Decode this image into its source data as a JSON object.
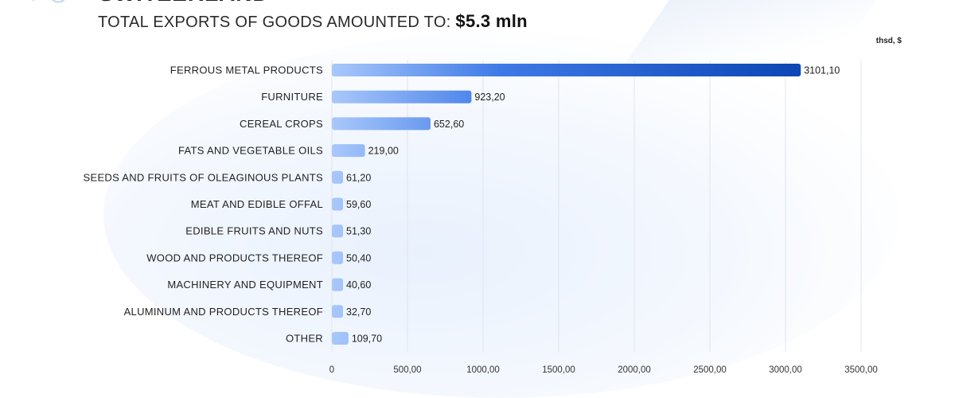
{
  "header": {
    "heading": "SWITZERLAND",
    "subtitle_prefix": "TOTAL EXPORTS OF GOODS AMOUNTED TO:",
    "subtitle_amount": "$5.3 mln",
    "unit": "thsd, $"
  },
  "colors": {
    "bar_light": "#a9c8fb",
    "bar_dark": "#0b44b3",
    "grid": "#dfe5ee",
    "text": "#222222"
  },
  "chart_data": {
    "type": "bar",
    "orientation": "horizontal",
    "categories": [
      "FERROUS METAL PRODUCTS",
      "FURNITURE",
      "CEREAL CROPS",
      "FATS AND VEGETABLE OILS",
      "SEEDS AND FRUITS OF OLEAGINOUS PLANTS",
      "MEAT AND EDIBLE OFFAL",
      "EDIBLE FRUITS AND NUTS",
      "WOOD AND PRODUCTS THEREOF",
      "MACHINERY AND EQUIPMENT",
      "ALUMINUM AND PRODUCTS THEREOF",
      "OTHER"
    ],
    "values": [
      3101.1,
      923.2,
      652.6,
      219.0,
      61.2,
      59.6,
      51.3,
      50.4,
      40.6,
      32.7,
      109.7
    ],
    "value_labels": [
      "3101,10",
      "923,20",
      "652,60",
      "219,00",
      "61,20",
      "59,60",
      "51,30",
      "50,40",
      "40,60",
      "32,70",
      "109,70"
    ],
    "xlim": [
      0,
      3500
    ],
    "x_ticks": [
      0,
      500,
      1000,
      1500,
      2000,
      2500,
      3000,
      3500
    ],
    "x_tick_labels": [
      "0",
      "500,00",
      "1000,00",
      "1500,00",
      "2000,00",
      "2500,00",
      "3000,00",
      "3500,00"
    ],
    "grid": "vertical"
  }
}
